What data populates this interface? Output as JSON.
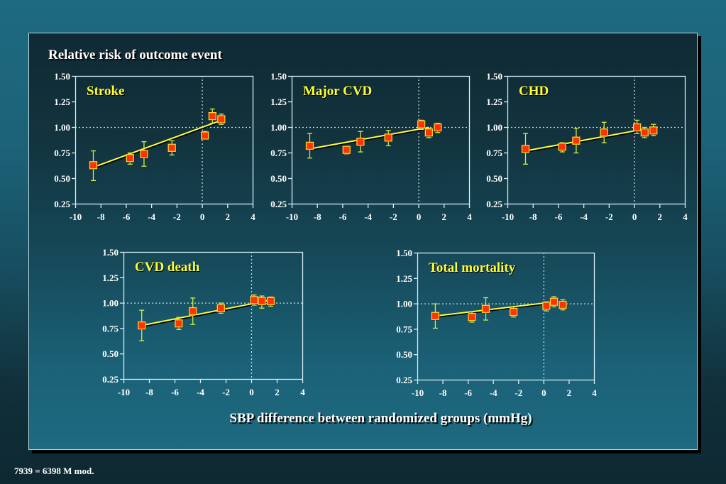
{
  "page": {
    "title": "Relative risk of outcome event",
    "x_caption": "SBP difference between randomized groups (mmHg)",
    "footnote": "7939 = 6398 M mod."
  },
  "colors": {
    "marker_fill": "#ff3300",
    "marker_border": "#ffcc33",
    "error_bar": "#ccee44",
    "fit_line": "#ffff33",
    "chart_title": "#ffff33",
    "axis": "#d8eef4",
    "reference_line": "#c8dce4"
  },
  "chart_data": [
    {
      "type": "scatter",
      "title": "Stroke",
      "xlabel": "SBP difference between randomized groups (mmHg)",
      "ylabel": "Relative risk of outcome event",
      "xlim": [
        -10,
        4
      ],
      "ylim": [
        0.25,
        1.5
      ],
      "x_ticks": [
        -10,
        -8,
        -6,
        -4,
        -2,
        0,
        2,
        4
      ],
      "y_ticks": [
        "0.25",
        "0.50",
        "0.75",
        "1.00",
        "1.25",
        "1.50"
      ],
      "reference_lines": {
        "x": 0,
        "y": 1.0
      },
      "points": [
        {
          "x": -8.6,
          "y": 0.63,
          "lo": 0.48,
          "hi": 0.77
        },
        {
          "x": -5.7,
          "y": 0.7,
          "lo": 0.64,
          "hi": 0.75
        },
        {
          "x": -4.6,
          "y": 0.74,
          "lo": 0.62,
          "hi": 0.86
        },
        {
          "x": -2.4,
          "y": 0.8,
          "lo": 0.73,
          "hi": 0.87
        },
        {
          "x": 0.2,
          "y": 0.92,
          "lo": 0.89,
          "hi": 0.96
        },
        {
          "x": 0.8,
          "y": 1.11,
          "lo": 1.04,
          "hi": 1.18
        },
        {
          "x": 1.5,
          "y": 1.08,
          "lo": 1.03,
          "hi": 1.13
        }
      ],
      "fit_line": [
        {
          "x": -8.6,
          "y": 0.61
        },
        {
          "x": 1.5,
          "y": 1.07
        }
      ]
    },
    {
      "type": "scatter",
      "title": "Major CVD",
      "xlim": [
        -10,
        4
      ],
      "ylim": [
        0.25,
        1.5
      ],
      "x_ticks": [
        -10,
        -8,
        -6,
        -4,
        -2,
        0,
        2,
        4
      ],
      "y_ticks": [
        "0.25",
        "0.50",
        "0.75",
        "1.00",
        "1.25",
        "1.50"
      ],
      "reference_lines": {
        "x": 0,
        "y": 1.0
      },
      "points": [
        {
          "x": -8.6,
          "y": 0.82,
          "lo": 0.7,
          "hi": 0.94
        },
        {
          "x": -5.7,
          "y": 0.78,
          "lo": 0.74,
          "hi": 0.81
        },
        {
          "x": -4.6,
          "y": 0.86,
          "lo": 0.76,
          "hi": 0.96
        },
        {
          "x": -2.4,
          "y": 0.9,
          "lo": 0.82,
          "hi": 0.97
        },
        {
          "x": 0.2,
          "y": 1.03,
          "lo": 0.98,
          "hi": 1.07
        },
        {
          "x": 0.8,
          "y": 0.95,
          "lo": 0.9,
          "hi": 0.99
        },
        {
          "x": 1.5,
          "y": 1.0,
          "lo": 0.95,
          "hi": 1.04
        }
      ],
      "fit_line": [
        {
          "x": -8.6,
          "y": 0.79
        },
        {
          "x": 0.8,
          "y": 1.0
        }
      ]
    },
    {
      "type": "scatter",
      "title": "CHD",
      "xlim": [
        -10,
        4
      ],
      "ylim": [
        0.25,
        1.5
      ],
      "x_ticks": [
        -10,
        -8,
        -6,
        -4,
        -2,
        0,
        2,
        4
      ],
      "y_ticks": [
        "0.25",
        "0.50",
        "0.75",
        "1.00",
        "1.25",
        "1.50"
      ],
      "reference_lines": {
        "x": 0,
        "y": 1.0
      },
      "points": [
        {
          "x": -8.6,
          "y": 0.79,
          "lo": 0.64,
          "hi": 0.94
        },
        {
          "x": -5.7,
          "y": 0.81,
          "lo": 0.76,
          "hi": 0.85
        },
        {
          "x": -4.6,
          "y": 0.87,
          "lo": 0.75,
          "hi": 0.99
        },
        {
          "x": -2.4,
          "y": 0.95,
          "lo": 0.85,
          "hi": 1.05
        },
        {
          "x": 0.2,
          "y": 1.0,
          "lo": 0.94,
          "hi": 1.07
        },
        {
          "x": 0.8,
          "y": 0.95,
          "lo": 0.9,
          "hi": 1.0
        },
        {
          "x": 1.5,
          "y": 0.97,
          "lo": 0.92,
          "hi": 1.03
        }
      ],
      "fit_line": [
        {
          "x": -8.6,
          "y": 0.77
        },
        {
          "x": 0.2,
          "y": 0.97
        }
      ]
    },
    {
      "type": "scatter",
      "title": "CVD death",
      "xlim": [
        -10,
        4
      ],
      "ylim": [
        0.25,
        1.5
      ],
      "x_ticks": [
        -10,
        -8,
        -6,
        -4,
        -2,
        0,
        2,
        4
      ],
      "y_ticks": [
        "0.25",
        "0.50",
        "0.75",
        "1.00",
        "1.25",
        "1.50"
      ],
      "reference_lines": {
        "x": 0,
        "y": 1.0
      },
      "points": [
        {
          "x": -8.6,
          "y": 0.78,
          "lo": 0.63,
          "hi": 0.93
        },
        {
          "x": -5.7,
          "y": 0.8,
          "lo": 0.74,
          "hi": 0.86
        },
        {
          "x": -4.6,
          "y": 0.92,
          "lo": 0.79,
          "hi": 1.05
        },
        {
          "x": -2.4,
          "y": 0.95,
          "lo": 0.9,
          "hi": 1.0
        },
        {
          "x": 0.2,
          "y": 1.03,
          "lo": 0.98,
          "hi": 1.08
        },
        {
          "x": 0.8,
          "y": 1.02,
          "lo": 0.95,
          "hi": 1.07
        },
        {
          "x": 1.5,
          "y": 1.02,
          "lo": 0.97,
          "hi": 1.06
        }
      ],
      "fit_line": [
        {
          "x": -8.6,
          "y": 0.78
        },
        {
          "x": 1.5,
          "y": 1.03
        }
      ]
    },
    {
      "type": "scatter",
      "title": "Total mortality",
      "xlim": [
        -10,
        4
      ],
      "ylim": [
        0.25,
        1.5
      ],
      "x_ticks": [
        -10,
        -8,
        -6,
        -4,
        -2,
        0,
        2,
        4
      ],
      "y_ticks": [
        "0.25",
        "0.50",
        "0.75",
        "1.00",
        "1.25",
        "1.50"
      ],
      "reference_lines": {
        "x": 0,
        "y": 1.0
      },
      "points": [
        {
          "x": -8.6,
          "y": 0.88,
          "lo": 0.76,
          "hi": 1.0
        },
        {
          "x": -5.7,
          "y": 0.87,
          "lo": 0.82,
          "hi": 0.92
        },
        {
          "x": -4.6,
          "y": 0.95,
          "lo": 0.84,
          "hi": 1.06
        },
        {
          "x": -2.4,
          "y": 0.92,
          "lo": 0.87,
          "hi": 0.97
        },
        {
          "x": 0.2,
          "y": 0.98,
          "lo": 0.93,
          "hi": 1.02
        },
        {
          "x": 0.8,
          "y": 1.02,
          "lo": 0.97,
          "hi": 1.07
        },
        {
          "x": 1.5,
          "y": 0.99,
          "lo": 0.94,
          "hi": 1.04
        }
      ],
      "fit_line": [
        {
          "x": -8.6,
          "y": 0.88
        },
        {
          "x": 0.2,
          "y": 1.01
        }
      ]
    }
  ]
}
